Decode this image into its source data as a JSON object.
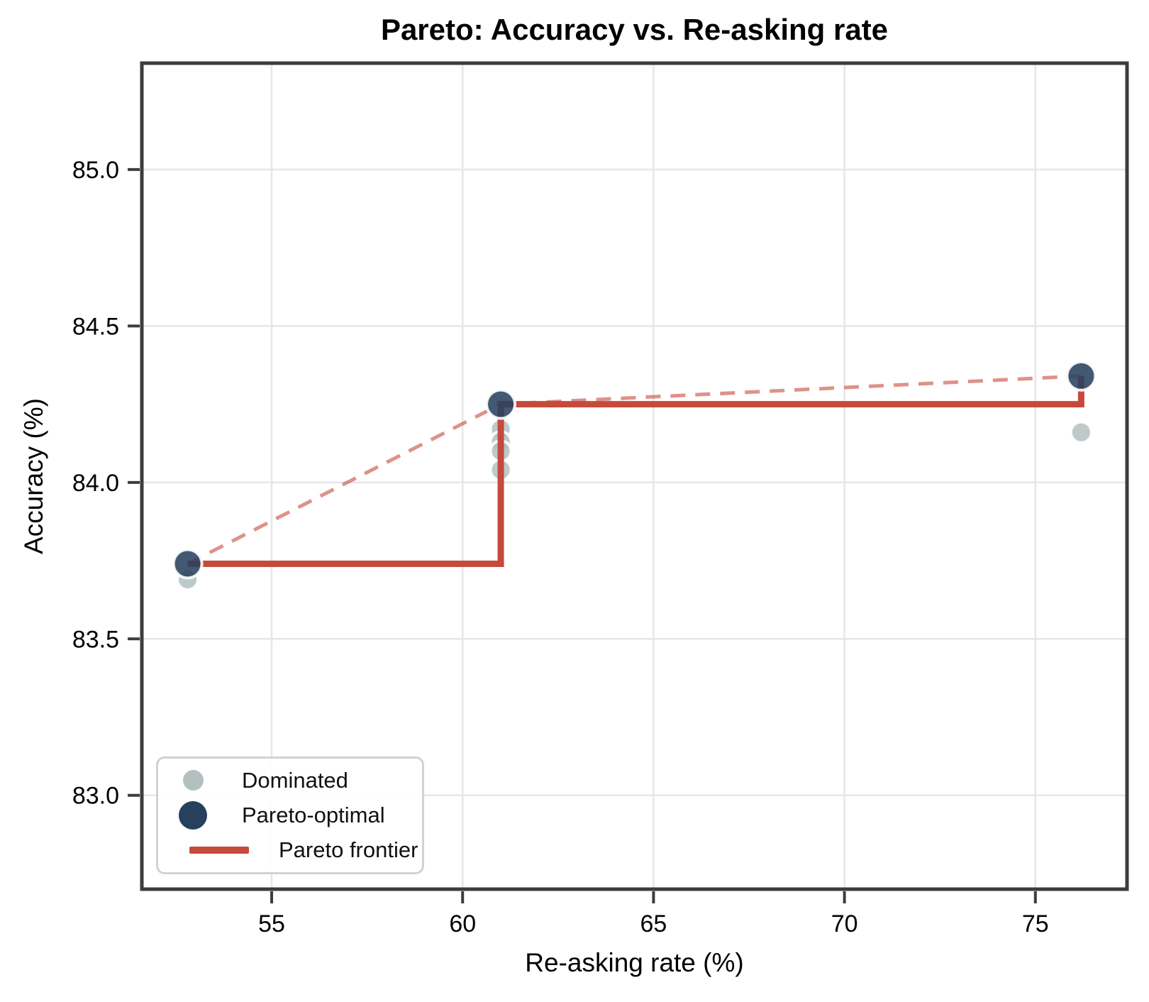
{
  "chart_data": {
    "type": "scatter",
    "title": "Pareto: Accuracy vs. Re-asking rate",
    "xlabel": "Re-asking rate (%)",
    "ylabel": "Accuracy (%)",
    "xlim": [
      51.6,
      77.4
    ],
    "ylim": [
      82.7,
      85.34
    ],
    "xticks": [
      55,
      60,
      65,
      70,
      75
    ],
    "xtick_labels": [
      "55",
      "60",
      "65",
      "70",
      "75"
    ],
    "yticks": [
      83.0,
      83.5,
      84.0,
      84.5,
      85.0
    ],
    "ytick_labels": [
      "83.0",
      "83.5",
      "84.0",
      "84.5",
      "85.0"
    ],
    "grid": true,
    "legend_position": "lower-left",
    "legend_labels": [
      "Dominated",
      "Pareto-optimal",
      "Pareto frontier"
    ],
    "series": [
      {
        "name": "Dominated",
        "type": "scatter",
        "color": "#b3c0bf",
        "marker_radius": 14.5,
        "opacity": 0.85,
        "points": [
          [
            52.8,
            83.69
          ],
          [
            61.0,
            84.17
          ],
          [
            61.0,
            84.13
          ],
          [
            61.0,
            84.1
          ],
          [
            61.0,
            84.04
          ],
          [
            76.2,
            84.16
          ]
        ]
      },
      {
        "name": "Pareto connector (dashed)",
        "type": "line-dashed",
        "color": "#c64a3c",
        "opacity": 0.6,
        "width": 5,
        "points": [
          [
            52.8,
            83.74
          ],
          [
            61.0,
            84.25
          ],
          [
            76.2,
            84.34
          ]
        ]
      },
      {
        "name": "Pareto frontier",
        "type": "step-line",
        "color": "#c64a3c",
        "opacity": 1,
        "width": 9,
        "points": [
          [
            52.8,
            83.74
          ],
          [
            61.0,
            84.25
          ],
          [
            76.2,
            84.34
          ]
        ]
      },
      {
        "name": "Pareto-optimal",
        "type": "scatter",
        "color": "#26405e",
        "marker_radius": 20,
        "opacity": 0.87,
        "points": [
          [
            52.8,
            83.74
          ],
          [
            61.0,
            84.25
          ],
          [
            76.2,
            84.34
          ]
        ]
      }
    ],
    "colors": {
      "grid": "#e6e6e6",
      "spine": "#3c3c3c",
      "tick_text": "#000000",
      "dominated": "#b3c0bf",
      "pareto_optimal": "#26405e",
      "frontier": "#c64a3c"
    }
  }
}
